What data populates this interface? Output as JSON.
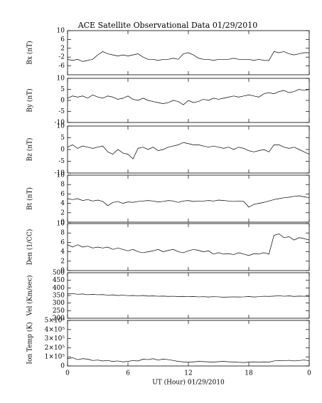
{
  "chart_data": [
    {
      "type": "line",
      "title": "ACE Satellite Observational Data   01/29/2010",
      "ylabel": "Bx (nT)",
      "ylim": [
        -10,
        10
      ],
      "yticks": [
        -6,
        -2,
        2,
        6,
        10
      ],
      "xlim": [
        0,
        24
      ],
      "x": [
        0,
        0.5,
        1,
        1.5,
        2,
        2.5,
        3,
        3.5,
        4,
        4.5,
        5,
        5.5,
        6,
        6.5,
        7,
        7.5,
        8,
        8.5,
        9,
        9.5,
        10,
        10.5,
        11,
        11.5,
        12,
        12.5,
        13,
        13.5,
        14,
        14.5,
        15,
        15.5,
        16,
        16.5,
        17,
        17.5,
        18,
        18.5,
        19,
        19.5,
        20,
        20.5,
        21,
        21.5,
        22,
        22.5,
        23,
        23.5,
        24
      ],
      "values": [
        -3,
        -3.5,
        -3,
        -4,
        -3.5,
        -3,
        -1,
        0.5,
        -0.5,
        -1,
        -1.5,
        -1,
        -1.5,
        -1,
        -0.5,
        -2,
        -3,
        -3,
        -3.5,
        -3,
        -3,
        -2.5,
        -3,
        -0.5,
        0,
        -1,
        -2.5,
        -3,
        -3,
        -3.5,
        -3,
        -3,
        -3,
        -2.5,
        -3,
        -3,
        -3,
        -3.5,
        -3,
        -3.5,
        -3.5,
        0.5,
        0,
        0.5,
        -0.5,
        -1,
        -0.5,
        0,
        0
      ],
      "color": "#000000"
    },
    {
      "type": "line",
      "ylabel": "By (nT)",
      "ylim": [
        -10,
        10
      ],
      "yticks": [
        -10,
        -5,
        0,
        5,
        10
      ],
      "xlim": [
        0,
        24
      ],
      "x": [
        0,
        0.5,
        1,
        1.5,
        2,
        2.5,
        3,
        3.5,
        4,
        4.5,
        5,
        5.5,
        6,
        6.5,
        7,
        7.5,
        8,
        8.5,
        9,
        9.5,
        10,
        10.5,
        11,
        11.5,
        12,
        12.5,
        13,
        13.5,
        14,
        14.5,
        15,
        15.5,
        16,
        16.5,
        17,
        17.5,
        18,
        18.5,
        19,
        19.5,
        20,
        20.5,
        21,
        21.5,
        22,
        22.5,
        23,
        23.5,
        24
      ],
      "values": [
        1,
        2,
        1.5,
        2,
        1,
        2.5,
        1.5,
        1,
        2,
        1.5,
        0.5,
        1,
        2,
        0.5,
        0,
        1,
        0,
        -0.5,
        -1,
        -1.5,
        -1,
        0,
        -0.5,
        -2,
        0,
        -1,
        -0.5,
        0.5,
        0,
        1,
        0.5,
        1,
        1.5,
        2,
        1.5,
        2,
        2.5,
        2,
        1.5,
        3,
        3.5,
        3,
        4,
        4.5,
        3.5,
        4,
        5,
        4.5,
        5
      ],
      "color": "#000000"
    },
    {
      "type": "line",
      "ylabel": "Bz (nT)",
      "ylim": [
        -10,
        10
      ],
      "yticks": [
        -10,
        -5,
        0,
        5,
        10
      ],
      "xlim": [
        0,
        24
      ],
      "x": [
        0,
        0.5,
        1,
        1.5,
        2,
        2.5,
        3,
        3.5,
        4,
        4.5,
        5,
        5.5,
        6,
        6.5,
        7,
        7.5,
        8,
        8.5,
        9,
        9.5,
        10,
        10.5,
        11,
        11.5,
        12,
        12.5,
        13,
        13.5,
        14,
        14.5,
        15,
        15.5,
        16,
        16.5,
        17,
        17.5,
        18,
        18.5,
        19,
        19.5,
        20,
        20.5,
        21,
        21.5,
        22,
        22.5,
        23,
        23.5,
        24
      ],
      "values": [
        1,
        2,
        0.5,
        1.5,
        1,
        0.5,
        1,
        1.5,
        -1,
        -2,
        0,
        -1.5,
        -2,
        -4,
        0.5,
        1,
        0,
        1,
        -0.5,
        0,
        1,
        1.5,
        2,
        3,
        2.5,
        2,
        2,
        1.5,
        1,
        1.5,
        1,
        0.5,
        1,
        0,
        1,
        0.5,
        -0.5,
        -1,
        -0.5,
        0,
        -1,
        2,
        2,
        1,
        0.5,
        1,
        0,
        -1,
        -2
      ],
      "color": "#000000"
    },
    {
      "type": "line",
      "ylabel": "Bt (nT)",
      "ylim": [
        0,
        10
      ],
      "yticks": [
        0,
        2,
        4,
        6,
        8,
        10
      ],
      "xlim": [
        0,
        24
      ],
      "x": [
        0,
        0.5,
        1,
        1.5,
        2,
        2.5,
        3,
        3.5,
        4,
        4.5,
        5,
        5.5,
        6,
        6.5,
        7,
        7.5,
        8,
        8.5,
        9,
        9.5,
        10,
        10.5,
        11,
        11.5,
        12,
        12.5,
        13,
        13.5,
        14,
        14.5,
        15,
        15.5,
        16,
        16.5,
        17,
        17.5,
        18,
        18.5,
        19,
        19.5,
        20,
        20.5,
        21,
        21.5,
        22,
        22.5,
        23,
        23.5,
        24
      ],
      "values": [
        5,
        4.8,
        5,
        4.6,
        4.8,
        4.5,
        4.7,
        4.4,
        3.5,
        4.2,
        4.4,
        4,
        4.3,
        4.2,
        4.4,
        4.5,
        4.6,
        4.5,
        4.3,
        4.4,
        4.6,
        4.5,
        4.2,
        4.5,
        4.6,
        4.4,
        4.5,
        4.5,
        4.6,
        4.5,
        4.7,
        4.6,
        4.5,
        4.4,
        4.5,
        4.4,
        3.2,
        3.8,
        4,
        4.2,
        4.5,
        4.8,
        5,
        5.2,
        5.3,
        5.5,
        5.6,
        5.4,
        5.2
      ],
      "color": "#000000"
    },
    {
      "type": "line",
      "ylabel": "Den (1/CC)",
      "ylim": [
        0,
        10
      ],
      "yticks": [
        0,
        2,
        4,
        6,
        8,
        10
      ],
      "xlim": [
        0,
        24
      ],
      "x": [
        0,
        0.5,
        1,
        1.5,
        2,
        2.5,
        3,
        3.5,
        4,
        4.5,
        5,
        5.5,
        6,
        6.5,
        7,
        7.5,
        8,
        8.5,
        9,
        9.5,
        10,
        10.5,
        11,
        11.5,
        12,
        12.5,
        13,
        13.5,
        14,
        14.5,
        15,
        15.5,
        16,
        16.5,
        17,
        17.5,
        18,
        18.5,
        19,
        19.5,
        20,
        20.5,
        21,
        21.5,
        22,
        22.5,
        23,
        23.5,
        24
      ],
      "values": [
        5.5,
        5,
        5.5,
        5,
        5.2,
        4.8,
        5,
        4.8,
        5,
        4.5,
        4.8,
        4.5,
        4.2,
        4.5,
        4,
        3.8,
        4,
        4.2,
        4.5,
        4,
        4.3,
        4.5,
        4,
        3.8,
        4.2,
        4.5,
        4.3,
        4,
        4.2,
        3.5,
        3.8,
        3.5,
        3.6,
        3.4,
        3.8,
        3.5,
        3.2,
        3.6,
        3.5,
        3.8,
        3.5,
        7.5,
        7.8,
        7,
        7.2,
        6.5,
        7,
        6.8,
        6.5
      ],
      "color": "#000000"
    },
    {
      "type": "line",
      "ylabel": "Vel (Km/sec)",
      "ylim": [
        200,
        500
      ],
      "yticks": [
        200,
        250,
        300,
        350,
        400,
        450,
        500
      ],
      "xlim": [
        0,
        24
      ],
      "x": [
        0,
        0.5,
        1,
        1.5,
        2,
        2.5,
        3,
        3.5,
        4,
        4.5,
        5,
        5.5,
        6,
        6.5,
        7,
        7.5,
        8,
        8.5,
        9,
        9.5,
        10,
        10.5,
        11,
        11.5,
        12,
        12.5,
        13,
        13.5,
        14,
        14.5,
        15,
        15.5,
        16,
        16.5,
        17,
        17.5,
        18,
        18.5,
        19,
        19.5,
        20,
        20.5,
        21,
        21.5,
        22,
        22.5,
        23,
        23.5,
        24
      ],
      "values": [
        360,
        362,
        358,
        360,
        355,
        357,
        355,
        356,
        352,
        354,
        350,
        352,
        349,
        350,
        348,
        350,
        346,
        347,
        345,
        346,
        344,
        345,
        343,
        344,
        342,
        343,
        341,
        342,
        340,
        342,
        341,
        339,
        340,
        341,
        340,
        341,
        343,
        340,
        342,
        345,
        344,
        346,
        348,
        345,
        347,
        344,
        346,
        345,
        344
      ],
      "color": "#000000"
    },
    {
      "type": "line",
      "ylabel": "Ion Temp (K)",
      "ylim": [
        0,
        500000
      ],
      "yticks": [
        0,
        {
          "value": 100000,
          "label": "1×10⁵"
        },
        {
          "value": 200000,
          "label": "2×10⁵"
        },
        {
          "value": 300000,
          "label": "3×10⁵"
        },
        {
          "value": 400000,
          "label": "4×10⁵"
        },
        {
          "value": 500000,
          "label": "5×10⁵"
        }
      ],
      "xlim": [
        0,
        24
      ],
      "xlabel": "UT (Hour)  01/29/2010",
      "xticks": [
        0,
        6,
        12,
        18,
        {
          "value": 24,
          "label": "0"
        }
      ],
      "x": [
        0,
        0.5,
        1,
        1.5,
        2,
        2.5,
        3,
        3.5,
        4,
        4.5,
        5,
        5.5,
        6,
        6.5,
        7,
        7.5,
        8,
        8.5,
        9,
        9.5,
        10,
        10.5,
        11,
        11.5,
        12,
        12.5,
        13,
        13.5,
        14,
        14.5,
        15,
        15.5,
        16,
        16.5,
        17,
        17.5,
        18,
        18.5,
        19,
        19.5,
        20,
        20.5,
        21,
        21.5,
        22,
        22.5,
        23,
        23.5,
        24
      ],
      "values": [
        80000,
        90000,
        70000,
        80000,
        75000,
        60000,
        65000,
        55000,
        60000,
        50000,
        55000,
        45000,
        50000,
        60000,
        55000,
        75000,
        70000,
        80000,
        65000,
        75000,
        70000,
        60000,
        50000,
        45000,
        40000,
        45000,
        50000,
        48000,
        45000,
        42000,
        48000,
        50000,
        46000,
        44000,
        40000,
        38000,
        42000,
        45000,
        40000,
        44000,
        42000,
        55000,
        60000,
        58000,
        62000,
        55000,
        60000,
        65000,
        58000
      ],
      "color": "#000000"
    }
  ]
}
